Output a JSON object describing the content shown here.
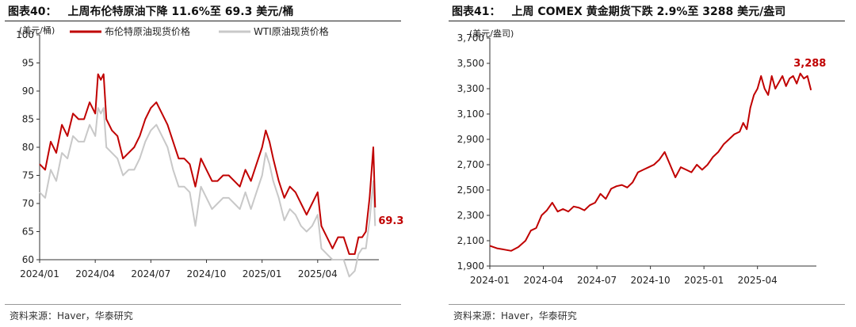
{
  "colors": {
    "brent": "#c00000",
    "wti": "#c8c8c8",
    "gold": "#c00000"
  },
  "chart_data": [
    {
      "type": "line",
      "figure_no": "图表40：",
      "title": "上周布伦特原油下降 11.6%至 69.3 美元/桶",
      "unit_label": "(美元/桶)",
      "ylim": [
        60,
        100
      ],
      "yticks": [
        "60",
        "65",
        "70",
        "75",
        "80",
        "85",
        "90",
        "95",
        "100"
      ],
      "xlim": [
        0,
        18.3
      ],
      "xticks": [
        {
          "x": 0,
          "label": "2024/01"
        },
        {
          "x": 3,
          "label": "2024/04"
        },
        {
          "x": 6,
          "label": "2024/07"
        },
        {
          "x": 9,
          "label": "2024/10"
        },
        {
          "x": 12,
          "label": "2025/01"
        },
        {
          "x": 15,
          "label": "2025/04"
        }
      ],
      "legend": [
        "布伦特原油现货价格",
        "WTI原油现货价格"
      ],
      "end_label": "69.3",
      "source": "资料来源：Haver，华泰研究",
      "series": [
        {
          "name": "布伦特原油现货价格",
          "x": [
            0,
            0.3,
            0.6,
            0.9,
            1.2,
            1.5,
            1.8,
            2.1,
            2.4,
            2.7,
            3.0,
            3.15,
            3.3,
            3.45,
            3.6,
            3.9,
            4.2,
            4.5,
            4.8,
            5.1,
            5.4,
            5.7,
            6.0,
            6.3,
            6.6,
            6.9,
            7.2,
            7.5,
            7.8,
            8.1,
            8.4,
            8.7,
            9.0,
            9.3,
            9.6,
            9.9,
            10.2,
            10.5,
            10.8,
            11.1,
            11.4,
            11.7,
            12.0,
            12.2,
            12.4,
            12.6,
            12.9,
            13.2,
            13.5,
            13.8,
            14.1,
            14.4,
            14.7,
            15.0,
            15.2,
            15.5,
            15.8,
            16.1,
            16.4,
            16.7,
            17.0,
            17.2,
            17.4,
            17.6,
            17.8,
            18.0,
            18.1
          ],
          "y": [
            77,
            76,
            81,
            79,
            84,
            82,
            86,
            85,
            85,
            88,
            86,
            93,
            92,
            93,
            85,
            83,
            82,
            78,
            79,
            80,
            82,
            85,
            87,
            88,
            86,
            84,
            81,
            78,
            78,
            77,
            73,
            78,
            76,
            74,
            74,
            75,
            75,
            74,
            73,
            76,
            74,
            77,
            80,
            83,
            81,
            78,
            74,
            71,
            73,
            72,
            70,
            68,
            70,
            72,
            66,
            64,
            62,
            64,
            64,
            61,
            61,
            64,
            64,
            65,
            71,
            80,
            69.3
          ]
        },
        {
          "name": "WTI原油现货价格",
          "x": [
            0,
            0.3,
            0.6,
            0.9,
            1.2,
            1.5,
            1.8,
            2.1,
            2.4,
            2.7,
            3.0,
            3.15,
            3.3,
            3.45,
            3.6,
            3.9,
            4.2,
            4.5,
            4.8,
            5.1,
            5.4,
            5.7,
            6.0,
            6.3,
            6.6,
            6.9,
            7.2,
            7.5,
            7.8,
            8.1,
            8.4,
            8.7,
            9.0,
            9.3,
            9.6,
            9.9,
            10.2,
            10.5,
            10.8,
            11.1,
            11.4,
            11.7,
            12.0,
            12.2,
            12.4,
            12.6,
            12.9,
            13.2,
            13.5,
            13.8,
            14.1,
            14.4,
            14.7,
            15.0,
            15.2,
            15.5,
            15.8,
            16.1,
            16.4,
            16.7,
            17.0,
            17.2,
            17.4,
            17.6,
            17.8,
            18.0,
            18.1
          ],
          "y": [
            72,
            71,
            76,
            74,
            79,
            78,
            82,
            81,
            81,
            84,
            82,
            87,
            86,
            87,
            80,
            79,
            78,
            75,
            76,
            76,
            78,
            81,
            83,
            84,
            82,
            80,
            76,
            73,
            73,
            72,
            66,
            73,
            71,
            69,
            70,
            71,
            71,
            70,
            69,
            72,
            69,
            72,
            75,
            79,
            77,
            74,
            71,
            67,
            69,
            68,
            66,
            65,
            66,
            68,
            62,
            61,
            60,
            60,
            60,
            57,
            58,
            61,
            62,
            62,
            67,
            74,
            66
          ]
        }
      ]
    },
    {
      "type": "line",
      "figure_no": "图表41：",
      "title": "上周 COMEX 黄金期货下跌 2.9%至 3288 美元/盎司",
      "unit_label": "(美元/盎司)",
      "ylim": [
        1900,
        3700
      ],
      "yticks": [
        "1,900",
        "2,100",
        "2,300",
        "2,500",
        "2,700",
        "2,900",
        "3,100",
        "3,300",
        "3,500",
        "3,700"
      ],
      "xlim": [
        0,
        18.3
      ],
      "xticks": [
        {
          "x": 0,
          "label": "2024-01"
        },
        {
          "x": 3,
          "label": "2024-04"
        },
        {
          "x": 6,
          "label": "2024-07"
        },
        {
          "x": 9,
          "label": "2024-10"
        },
        {
          "x": 12,
          "label": "2025-01"
        },
        {
          "x": 15,
          "label": "2025-04"
        }
      ],
      "end_label": "3,288",
      "source": "资料来源：Haver，华泰研究",
      "series": [
        {
          "name": "",
          "x": [
            0,
            0.4,
            0.8,
            1.2,
            1.6,
            2.0,
            2.3,
            2.6,
            2.9,
            3.2,
            3.5,
            3.8,
            4.1,
            4.4,
            4.7,
            5.0,
            5.3,
            5.6,
            5.9,
            6.2,
            6.5,
            6.8,
            7.1,
            7.4,
            7.7,
            8.0,
            8.3,
            8.6,
            8.9,
            9.2,
            9.5,
            9.8,
            10.1,
            10.4,
            10.7,
            11.0,
            11.3,
            11.6,
            11.9,
            12.2,
            12.5,
            12.8,
            13.1,
            13.4,
            13.7,
            14.0,
            14.2,
            14.4,
            14.6,
            14.8,
            15.0,
            15.2,
            15.4,
            15.6,
            15.8,
            16.0,
            16.2,
            16.4,
            16.6,
            16.8,
            17.0,
            17.2,
            17.4,
            17.6,
            17.8,
            18.0
          ],
          "y": [
            2060,
            2040,
            2030,
            2020,
            2050,
            2100,
            2180,
            2200,
            2300,
            2340,
            2400,
            2330,
            2350,
            2330,
            2370,
            2360,
            2340,
            2380,
            2400,
            2470,
            2430,
            2510,
            2530,
            2540,
            2520,
            2560,
            2640,
            2660,
            2680,
            2700,
            2740,
            2800,
            2700,
            2600,
            2680,
            2660,
            2640,
            2700,
            2660,
            2700,
            2760,
            2800,
            2860,
            2900,
            2940,
            2960,
            3030,
            2980,
            3150,
            3250,
            3300,
            3400,
            3300,
            3250,
            3400,
            3300,
            3350,
            3400,
            3320,
            3380,
            3400,
            3340,
            3420,
            3380,
            3400,
            3288
          ]
        }
      ]
    }
  ]
}
